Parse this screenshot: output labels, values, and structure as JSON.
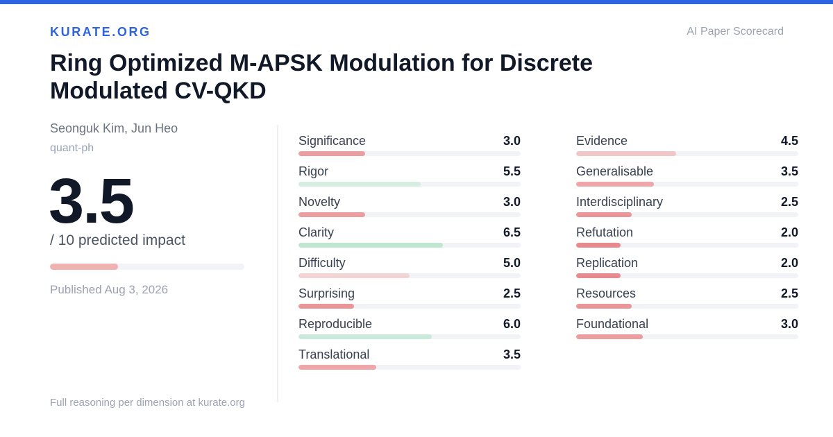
{
  "header": {
    "brand": "KURATE.ORG",
    "scorecard_label": "AI Paper Scorecard",
    "accent_color": "#2f64e0"
  },
  "paper": {
    "title": "Ring Optimized M-APSK Modulation for Discrete Modulated CV-QKD",
    "authors": "Seonguk Kim, Jun Heo",
    "category": "quant-ph",
    "published": "Published Aug 3, 2026"
  },
  "score": {
    "value": "3.5",
    "numeric": 3.5,
    "max": 10,
    "caption": "/ 10 predicted impact",
    "bar_color": "#f0b1b1"
  },
  "metrics_left": [
    {
      "name": "Significance",
      "value": "3.0",
      "score": 3.0,
      "color": "#eb9ea0"
    },
    {
      "name": "Rigor",
      "value": "5.5",
      "score": 5.5,
      "color": "#d6ede1"
    },
    {
      "name": "Novelty",
      "value": "3.0",
      "score": 3.0,
      "color": "#eb9ea0"
    },
    {
      "name": "Clarity",
      "value": "6.5",
      "score": 6.5,
      "color": "#bfe6d0"
    },
    {
      "name": "Difficulty",
      "value": "5.0",
      "score": 5.0,
      "color": "#f2d4d5"
    },
    {
      "name": "Surprising",
      "value": "2.5",
      "score": 2.5,
      "color": "#ea9597"
    },
    {
      "name": "Reproducible",
      "value": "6.0",
      "score": 6.0,
      "color": "#c9eada"
    },
    {
      "name": "Translational",
      "value": "3.5",
      "score": 3.5,
      "color": "#eea6a8"
    }
  ],
  "metrics_right": [
    {
      "name": "Evidence",
      "value": "4.5",
      "score": 4.5,
      "color": "#f1c6c7"
    },
    {
      "name": "Generalisable",
      "value": "3.5",
      "score": 3.5,
      "color": "#eea6a8"
    },
    {
      "name": "Interdisciplinary",
      "value": "2.5",
      "score": 2.5,
      "color": "#ea9597"
    },
    {
      "name": "Refutation",
      "value": "2.0",
      "score": 2.0,
      "color": "#e88a8d"
    },
    {
      "name": "Replication",
      "value": "2.0",
      "score": 2.0,
      "color": "#e88a8d"
    },
    {
      "name": "Resources",
      "value": "2.5",
      "score": 2.5,
      "color": "#ea9597"
    },
    {
      "name": "Foundational",
      "value": "3.0",
      "score": 3.0,
      "color": "#eb9ea0"
    }
  ],
  "footer": "Full reasoning per dimension at kurate.org"
}
